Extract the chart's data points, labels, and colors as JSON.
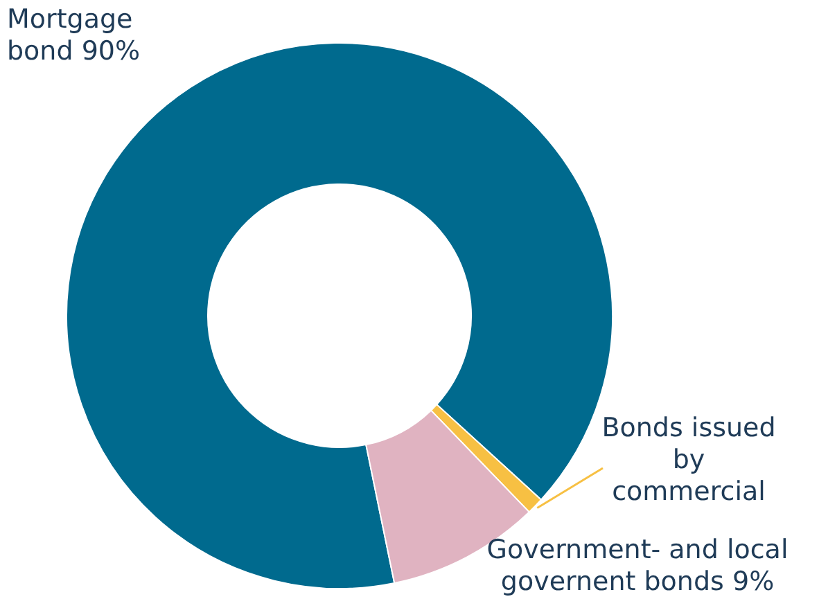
{
  "chart_data": {
    "type": "donut",
    "categories": [
      "Mortgage bond",
      "Bonds issued by commercial",
      "Government- and local governent bonds"
    ],
    "values": [
      90,
      1,
      9
    ],
    "value_labels": [
      "90%",
      null,
      "9%"
    ],
    "colors": [
      "#006a8e",
      "#f7c043",
      "#e0b3c1"
    ]
  }
}
